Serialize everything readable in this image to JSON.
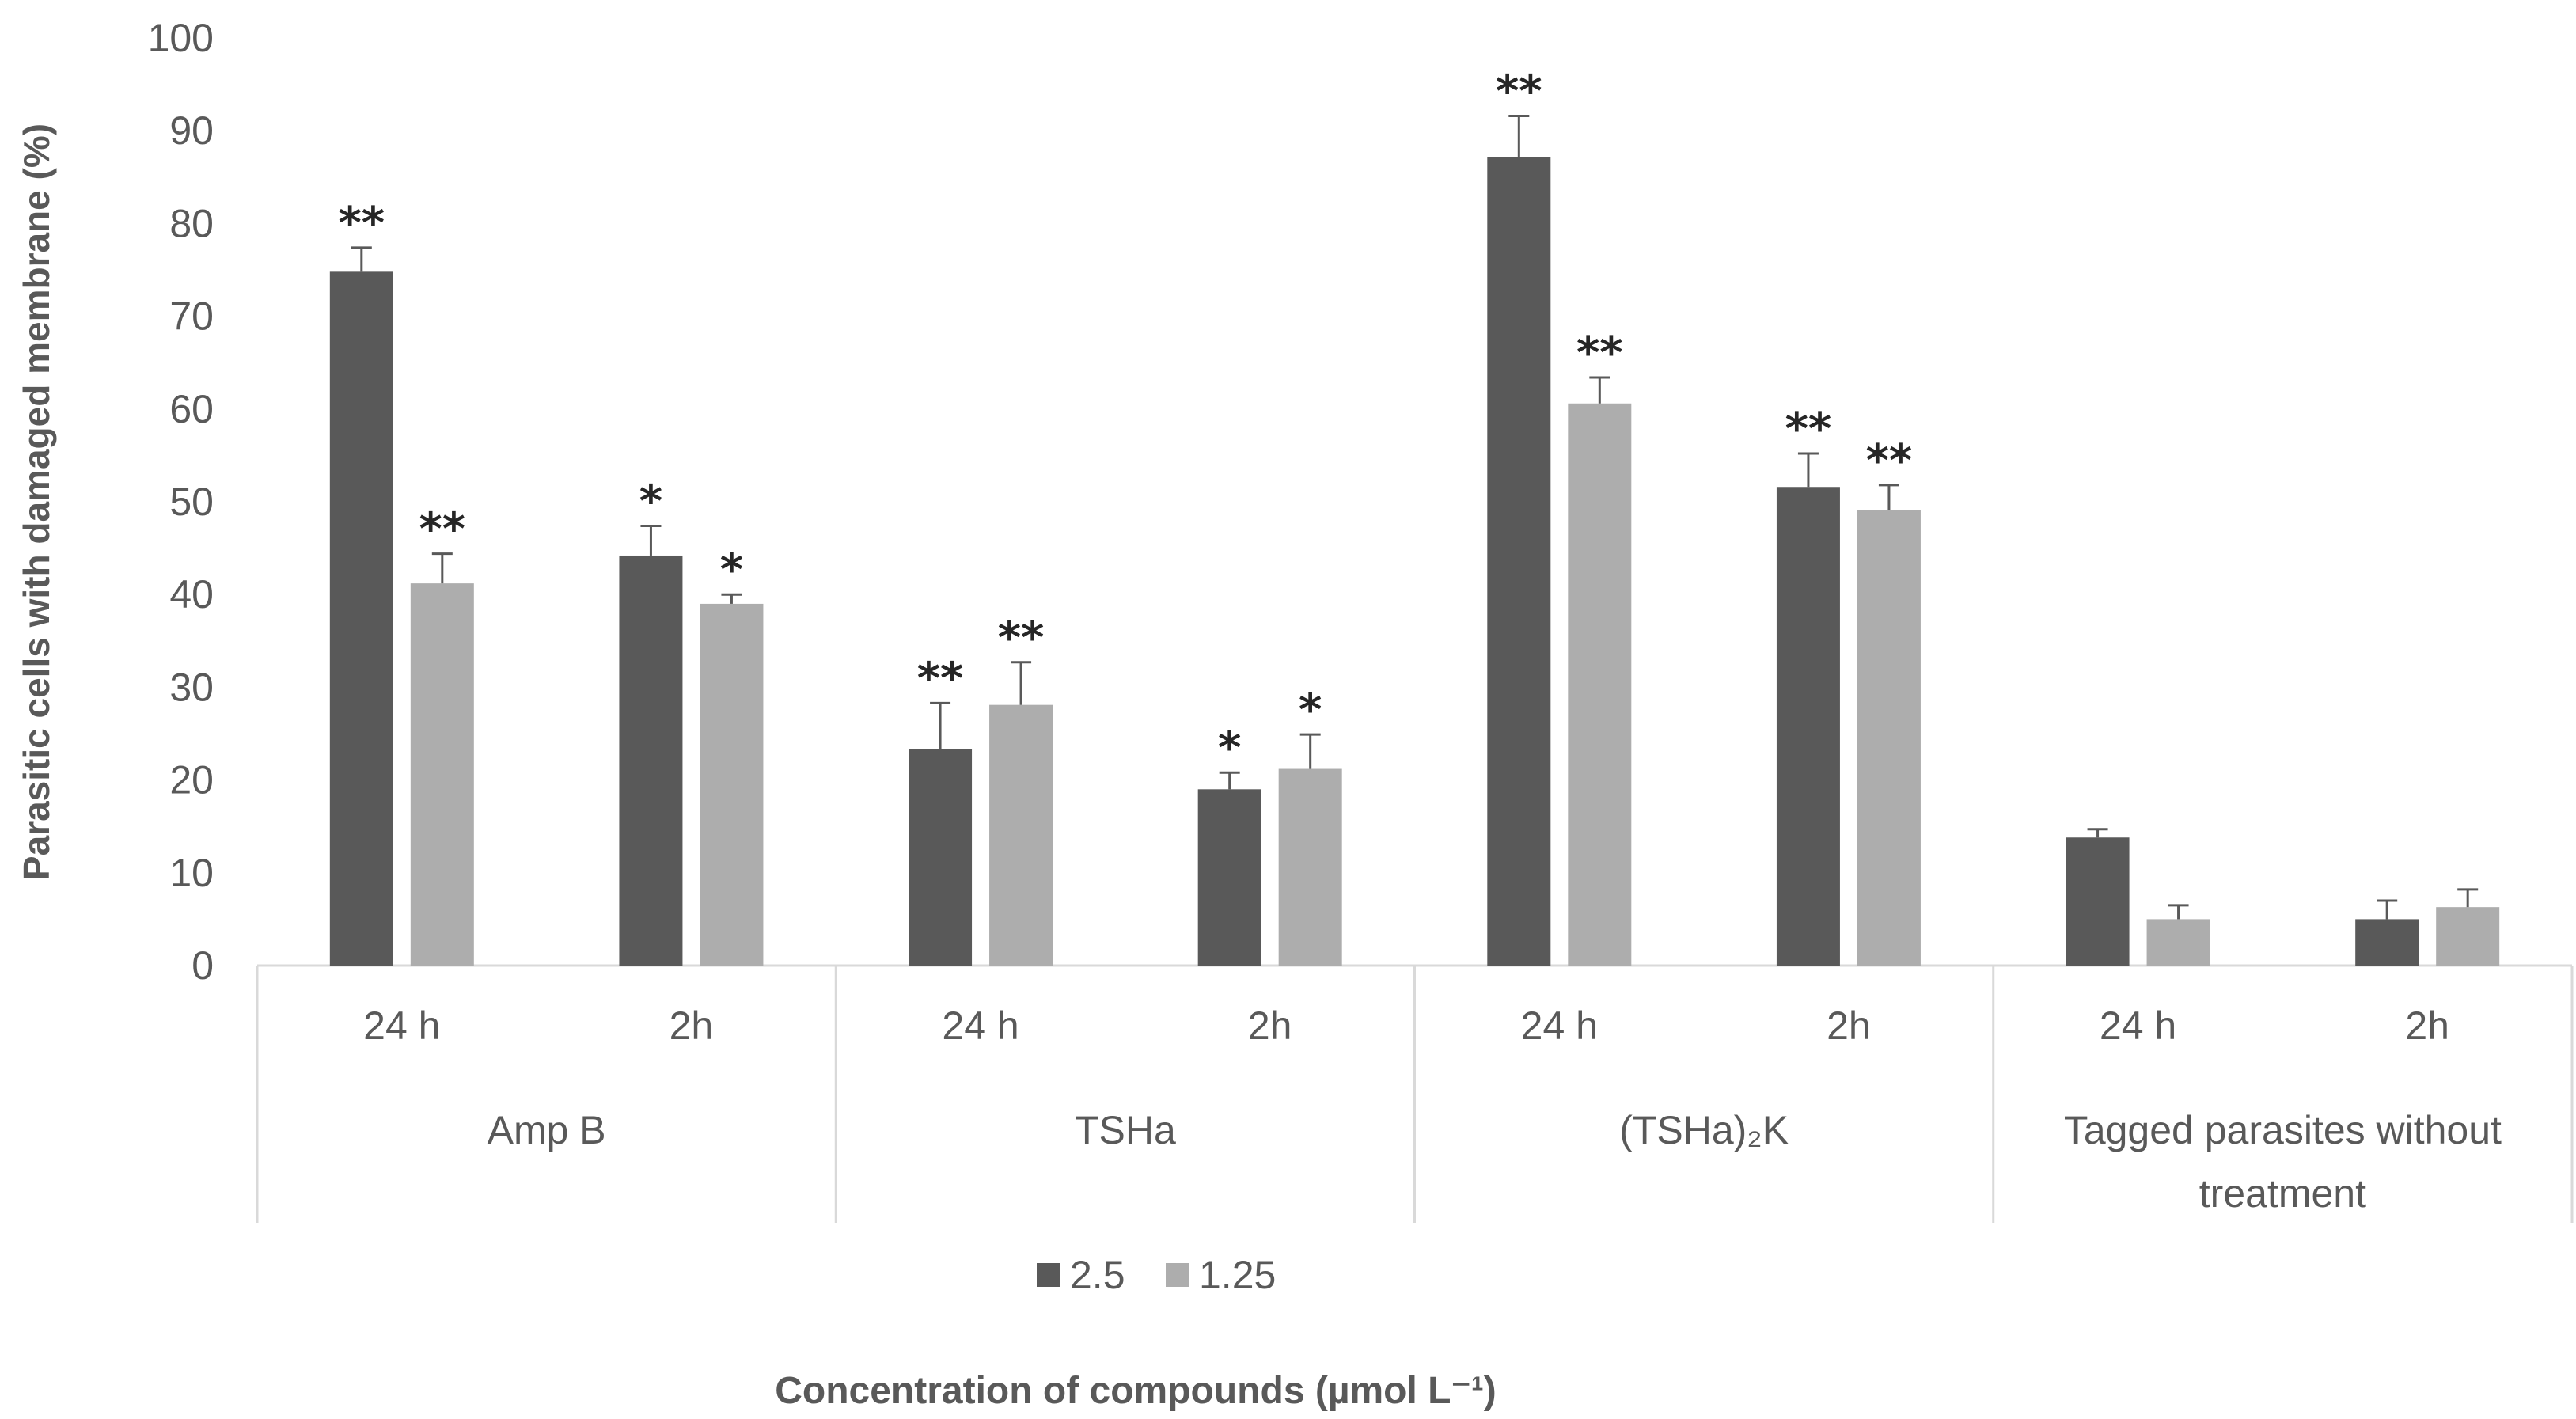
{
  "chart_data": {
    "type": "bar",
    "title": "",
    "ylabel": "Parasitic cells with damaged membrane (%)",
    "xlabel": "Concentration of compounds (µmol L⁻¹)",
    "ylim": [
      0,
      100
    ],
    "yticks": [
      "0",
      "10",
      "20",
      "30",
      "40",
      "50",
      "60",
      "70",
      "80",
      "90",
      "100"
    ],
    "groups": [
      {
        "label": "Amp B",
        "label_lines": [
          "Amp B"
        ],
        "timepoints": [
          "24 h",
          "2h"
        ]
      },
      {
        "label": "TSHa",
        "label_lines": [
          "TSHa"
        ],
        "timepoints": [
          "24 h",
          "2h"
        ]
      },
      {
        "label": "(TSHa)₂K",
        "label_lines": [
          "(TSHa)₂K"
        ],
        "timepoints": [
          "24 h",
          "2h"
        ]
      },
      {
        "label": "Tagged parasites without treatment",
        "label_lines": [
          "Tagged parasites without",
          "treatment"
        ],
        "timepoints": [
          "24 h",
          "2h"
        ]
      }
    ],
    "categories": [
      "Amp B 24 h",
      "Amp B 2h",
      "TSHa 24 h",
      "TSHa 2h",
      "(TSHa)₂K 24 h",
      "(TSHa)₂K 2h",
      "Tagged parasites without treatment 24 h",
      "Tagged parasites without treatment 2h"
    ],
    "series": [
      {
        "name": "2.5",
        "color": "#595959",
        "values": [
          74.8,
          44.2,
          23.3,
          19.0,
          87.2,
          51.6,
          13.8,
          5.0
        ],
        "errors": [
          2.6,
          3.2,
          5.0,
          1.8,
          4.4,
          3.6,
          0.9,
          2.0
        ],
        "significance": [
          "**",
          "*",
          "**",
          "*",
          "**",
          "**",
          "",
          ""
        ]
      },
      {
        "name": "1.25",
        "color": "#adadad",
        "values": [
          41.2,
          39.0,
          28.1,
          21.2,
          60.6,
          49.1,
          5.0,
          6.3
        ],
        "errors": [
          3.2,
          1.0,
          4.6,
          3.7,
          2.8,
          2.7,
          1.5,
          1.9
        ],
        "significance": [
          "**",
          "*",
          "**",
          "*",
          "**",
          "**",
          "",
          ""
        ]
      }
    ],
    "legend": {
      "position": "bottom",
      "entries": [
        "2.5",
        "1.25"
      ]
    },
    "grid": false
  }
}
